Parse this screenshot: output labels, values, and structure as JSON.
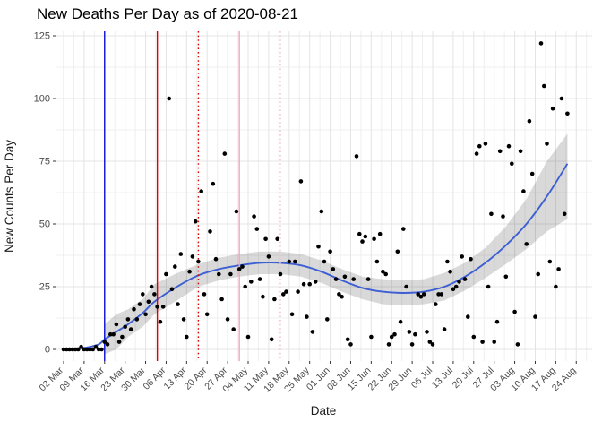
{
  "chart": {
    "title": "New Deaths Per Day as of 2020-08-21",
    "xlabel": "Date",
    "ylabel": "New Counts Per Day"
  },
  "chart_data": {
    "type": "scatter",
    "title": "New Deaths Per Day as of 2020-08-21",
    "xlabel": "Date",
    "ylabel": "New Counts Per Day",
    "ylim": [
      0,
      125
    ],
    "y_ticks": [
      0,
      25,
      50,
      75,
      100,
      125
    ],
    "x_tick_labels": [
      "02 Mar",
      "09 Mar",
      "16 Mar",
      "23 Mar",
      "30 Mar",
      "06 Apr",
      "13 Apr",
      "20 Apr",
      "27 Apr",
      "04 May",
      "11 May",
      "18 May",
      "25 May",
      "01 Jun",
      "08 Jun",
      "15 Jun",
      "22 Jun",
      "29 Jun",
      "06 Jul",
      "13 Jul",
      "20 Jul",
      "27 Jul",
      "03 Aug",
      "10 Aug",
      "17 Aug",
      "24 Aug"
    ],
    "x_tick_days": [
      0,
      7,
      14,
      21,
      28,
      35,
      42,
      49,
      56,
      63,
      70,
      77,
      84,
      91,
      98,
      105,
      112,
      119,
      126,
      133,
      140,
      147,
      154,
      161,
      168,
      175
    ],
    "grid": true,
    "legend": false,
    "point_color": "#000000",
    "points": {
      "days": "0..172 (daily, 02 Mar through 21 Aug 2020)",
      "values": [
        0,
        0,
        0,
        0,
        0,
        0,
        1,
        0,
        0,
        0,
        0,
        1,
        0,
        0,
        3,
        2,
        6,
        6,
        10,
        3,
        5,
        9,
        12,
        8,
        16,
        12,
        18,
        22,
        14,
        19,
        25,
        22,
        17,
        11,
        17,
        30,
        100,
        24,
        33,
        18,
        38,
        12,
        5,
        31,
        37,
        51,
        35,
        63,
        22,
        14,
        47,
        66,
        36,
        30,
        20,
        78,
        12,
        30,
        8,
        55,
        32,
        33,
        25,
        5,
        27,
        53,
        48,
        28,
        21,
        44,
        37,
        4,
        20,
        44,
        30,
        22,
        23,
        35,
        14,
        35,
        23,
        67,
        26,
        13,
        26,
        7,
        27,
        41,
        55,
        35,
        12,
        39,
        32,
        28,
        22,
        21,
        29,
        4,
        2,
        28,
        77,
        46,
        43,
        45,
        28,
        5,
        44,
        35,
        46,
        31,
        30,
        2,
        5,
        6,
        39,
        11,
        48,
        25,
        7,
        2,
        6,
        22,
        21,
        22,
        7,
        3,
        2,
        18,
        22,
        22,
        8,
        35,
        31,
        24,
        25,
        27,
        37,
        28,
        13,
        36,
        5,
        78,
        81,
        3,
        82,
        25,
        54,
        3,
        11,
        79,
        53,
        29,
        81,
        74,
        15,
        2,
        79,
        63,
        42,
        91,
        70,
        13,
        30,
        122,
        105,
        82,
        35,
        96,
        25,
        32,
        100,
        54,
        94
      ]
    },
    "smooth_line": {
      "color": "#3d5fd3",
      "days": [
        0,
        4,
        8,
        12,
        14,
        18,
        22,
        27,
        31,
        38,
        46,
        53,
        60,
        67,
        74,
        81,
        88,
        95,
        102,
        109,
        116,
        123,
        130,
        137,
        144,
        151,
        158,
        165,
        172
      ],
      "values": [
        0.2,
        0.4,
        0.8,
        2,
        4,
        7,
        10,
        14.5,
        19,
        24.5,
        29.5,
        32,
        33.5,
        34.5,
        34.5,
        33.5,
        31,
        27.5,
        24.5,
        23,
        22.5,
        23,
        25,
        29,
        34.5,
        41.5,
        50,
        61,
        74
      ]
    },
    "ci_band": {
      "fill": "#000000",
      "opacity": 0.15,
      "days": [
        14,
        18,
        22,
        27,
        31,
        38,
        46,
        53,
        60,
        67,
        74,
        81,
        88,
        95,
        102,
        109,
        116,
        123,
        130,
        137,
        144,
        151,
        158,
        165,
        172
      ],
      "lower": [
        -2,
        0,
        5,
        9,
        14,
        19,
        25,
        27.5,
        29,
        30,
        30,
        29,
        26.5,
        23,
        20,
        18,
        17.5,
        18,
        19.5,
        23.5,
        28.5,
        34,
        40,
        47,
        52
      ],
      "upper": [
        10,
        14,
        16,
        20,
        26,
        30,
        34,
        36.5,
        38,
        39,
        39,
        38,
        35.5,
        32,
        29,
        28,
        27.5,
        28,
        30.5,
        34.5,
        40.5,
        49,
        60,
        75,
        86
      ]
    },
    "vlines": [
      {
        "day": 14,
        "color": "#0d0dcf",
        "style": "solid"
      },
      {
        "day": 32,
        "color": "#e00000",
        "style": "solid"
      },
      {
        "day": 46,
        "color": "#e00000",
        "style": "dotted"
      },
      {
        "day": 60,
        "color": "#f3a8b8",
        "style": "solid"
      },
      {
        "day": 74,
        "color": "#f6bcc8",
        "style": "dotted"
      }
    ],
    "colors": {
      "grid_major": "#e4e4e4",
      "grid_minor": "#efefef",
      "tick_label": "#4a4a4a",
      "axis_title": "#1a1a1a",
      "tick_mark": "#333333"
    }
  }
}
